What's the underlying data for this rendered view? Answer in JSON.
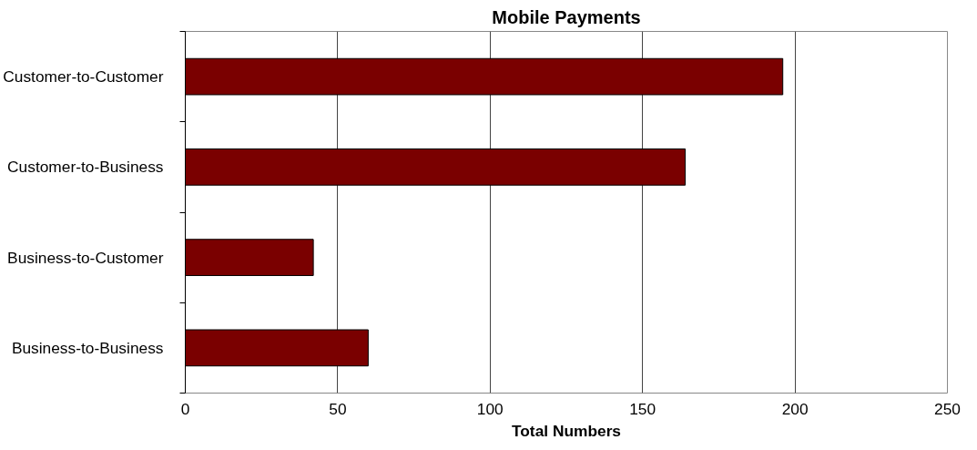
{
  "chart_data": {
    "type": "bar",
    "orientation": "horizontal",
    "title": "Mobile Payments",
    "xlabel": "Total Numbers",
    "categories": [
      "Customer-to-Customer",
      "Customer-to-Business",
      "Business-to-Customer",
      "Business-to-Business"
    ],
    "values": [
      196,
      164,
      42,
      60
    ],
    "color": "#7a0000",
    "xlim": [
      0,
      250
    ],
    "xticks": [
      0,
      50,
      100,
      150,
      200,
      250
    ],
    "grid": "x"
  }
}
